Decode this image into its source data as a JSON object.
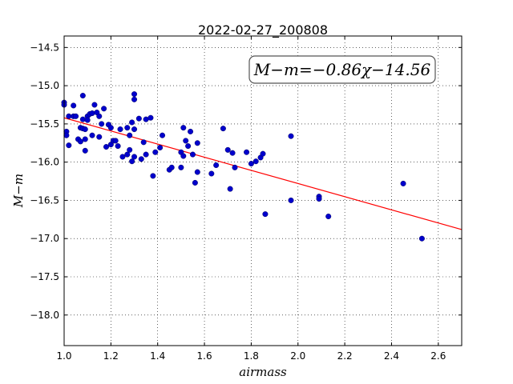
{
  "chart_data": {
    "type": "scatter",
    "title": "2022-02-27_200808",
    "xlabel": "airmass",
    "ylabel": "M−m",
    "xlim": [
      1.0,
      2.7
    ],
    "ylim": [
      -18.4,
      -14.35
    ],
    "y_inverted": true,
    "grid": true,
    "grid_style": "dotted",
    "x_ticks": [
      1.0,
      1.2,
      1.4,
      1.6,
      1.8,
      2.0,
      2.2,
      2.4,
      2.6
    ],
    "x_tick_labels": [
      "1.0",
      "1.2",
      "1.4",
      "1.6",
      "1.8",
      "2.0",
      "2.2",
      "2.4",
      "2.6"
    ],
    "y_ticks": [
      -14.5,
      -15.0,
      -15.5,
      -16.0,
      -16.5,
      -17.0,
      -17.5,
      -18.0
    ],
    "y_tick_labels": [
      "−14.5",
      "−15.0",
      "−15.5",
      "−16.0",
      "−16.5",
      "−17.0",
      "−17.5",
      "−18.0"
    ],
    "annotation": "M−m=−0.86χ−14.56",
    "fit": {
      "slope": -0.86,
      "intercept": -14.56,
      "color": "#ff0000"
    },
    "marker_color": "#0000cc",
    "points": [
      [
        1.0,
        -15.22
      ],
      [
        1.0,
        -15.25
      ],
      [
        1.01,
        -15.6
      ],
      [
        1.01,
        -15.65
      ],
      [
        1.02,
        -15.4
      ],
      [
        1.02,
        -15.78
      ],
      [
        1.04,
        -15.4
      ],
      [
        1.04,
        -15.26
      ],
      [
        1.05,
        -15.4
      ],
      [
        1.06,
        -15.7
      ],
      [
        1.07,
        -15.55
      ],
      [
        1.07,
        -15.73
      ],
      [
        1.08,
        -15.13
      ],
      [
        1.08,
        -15.44
      ],
      [
        1.08,
        -15.56
      ],
      [
        1.09,
        -15.57
      ],
      [
        1.09,
        -15.7
      ],
      [
        1.09,
        -15.85
      ],
      [
        1.1,
        -15.4
      ],
      [
        1.1,
        -15.45
      ],
      [
        1.11,
        -15.37
      ],
      [
        1.12,
        -15.65
      ],
      [
        1.12,
        -15.36
      ],
      [
        1.13,
        -15.25
      ],
      [
        1.14,
        -15.35
      ],
      [
        1.15,
        -15.4
      ],
      [
        1.15,
        -15.67
      ],
      [
        1.16,
        -15.5
      ],
      [
        1.17,
        -15.3
      ],
      [
        1.18,
        -15.8
      ],
      [
        1.19,
        -15.51
      ],
      [
        1.2,
        -15.77
      ],
      [
        1.2,
        -15.55
      ],
      [
        1.21,
        -15.72
      ],
      [
        1.22,
        -15.72
      ],
      [
        1.23,
        -15.79
      ],
      [
        1.24,
        -15.57
      ],
      [
        1.25,
        -15.93
      ],
      [
        1.27,
        -15.55
      ],
      [
        1.27,
        -15.9
      ],
      [
        1.28,
        -15.84
      ],
      [
        1.28,
        -15.65
      ],
      [
        1.29,
        -15.48
      ],
      [
        1.29,
        -15.99
      ],
      [
        1.3,
        -15.11
      ],
      [
        1.3,
        -15.18
      ],
      [
        1.3,
        -15.57
      ],
      [
        1.3,
        -15.93
      ],
      [
        1.32,
        -15.43
      ],
      [
        1.33,
        -15.96
      ],
      [
        1.34,
        -15.74
      ],
      [
        1.35,
        -15.44
      ],
      [
        1.35,
        -15.9
      ],
      [
        1.37,
        -15.42
      ],
      [
        1.38,
        -16.18
      ],
      [
        1.39,
        -15.87
      ],
      [
        1.41,
        -15.81
      ],
      [
        1.42,
        -15.65
      ],
      [
        1.45,
        -16.1
      ],
      [
        1.46,
        -16.07
      ],
      [
        1.5,
        -15.87
      ],
      [
        1.5,
        -16.07
      ],
      [
        1.51,
        -15.55
      ],
      [
        1.51,
        -15.92
      ],
      [
        1.52,
        -15.72
      ],
      [
        1.53,
        -15.79
      ],
      [
        1.54,
        -15.6
      ],
      [
        1.55,
        -15.9
      ],
      [
        1.56,
        -16.27
      ],
      [
        1.57,
        -15.75
      ],
      [
        1.57,
        -16.13
      ],
      [
        1.63,
        -16.15
      ],
      [
        1.65,
        -16.04
      ],
      [
        1.68,
        -15.56
      ],
      [
        1.7,
        -15.84
      ],
      [
        1.71,
        -16.35
      ],
      [
        1.72,
        -15.88
      ],
      [
        1.73,
        -16.07
      ],
      [
        1.78,
        -15.87
      ],
      [
        1.8,
        -16.02
      ],
      [
        1.82,
        -15.99
      ],
      [
        1.84,
        -15.94
      ],
      [
        1.85,
        -15.89
      ],
      [
        1.86,
        -16.68
      ],
      [
        1.97,
        -15.66
      ],
      [
        1.97,
        -16.5
      ],
      [
        2.09,
        -16.45
      ],
      [
        2.09,
        -16.48
      ],
      [
        2.13,
        -16.71
      ],
      [
        2.45,
        -16.28
      ],
      [
        2.53,
        -17.0
      ]
    ]
  }
}
